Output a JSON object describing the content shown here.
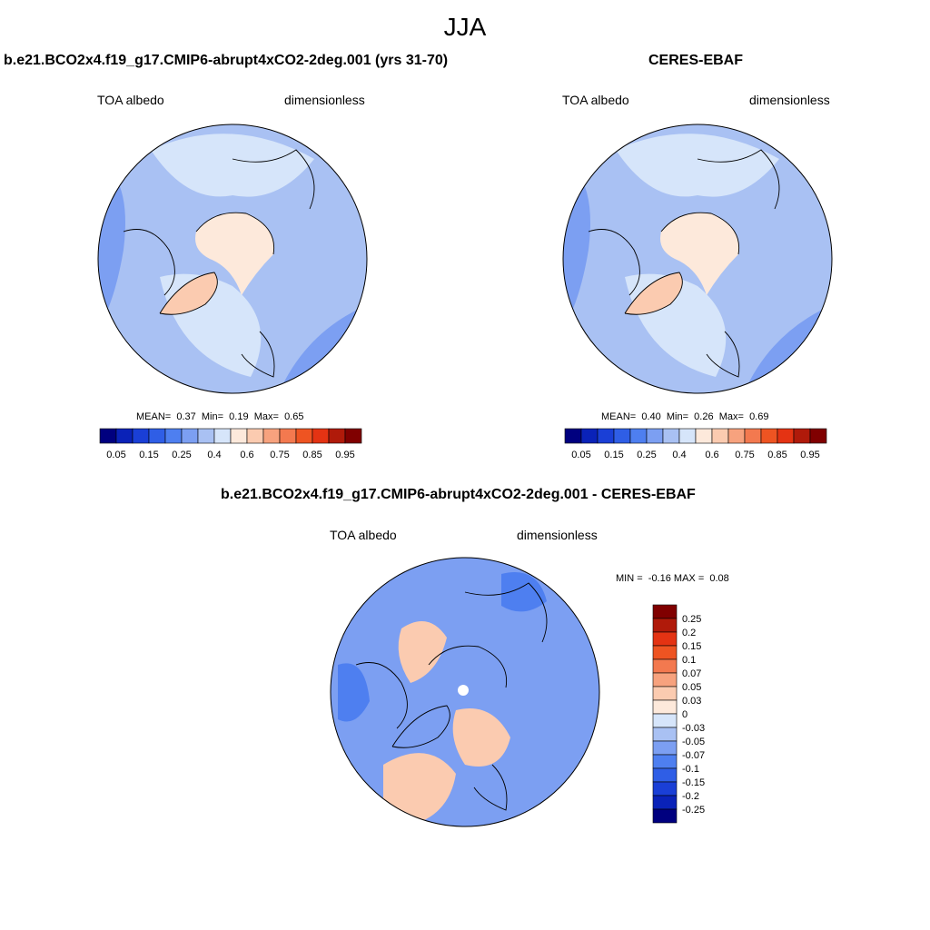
{
  "title": "JJA",
  "panels": [
    {
      "title": "b.e21.BCO2x4.f19_g17.CMIP6-abrupt4xCO2-2deg.001 (yrs 31-70)",
      "left_label": "TOA albedo",
      "right_label": "dimensionless",
      "stats": {
        "mean_label": "MEAN=",
        "mean": "0.37",
        "min_label": "Min=",
        "min": "0.19",
        "max_label": "Max=",
        "max": "0.65"
      }
    },
    {
      "title": "CERES-EBAF",
      "left_label": "TOA albedo",
      "right_label": "dimensionless",
      "stats": {
        "mean_label": "MEAN=",
        "mean": "0.40",
        "min_label": "Min=",
        "min": "0.26",
        "max_label": "Max=",
        "max": "0.69"
      }
    },
    {
      "title": "b.e21.BCO2x4.f19_g17.CMIP6-abrupt4xCO2-2deg.001 - CERES-EBAF",
      "left_label": "TOA albedo",
      "right_label": "dimensionless",
      "stats": {
        "min_label": "MIN =",
        "min": "-0.16",
        "max_label": "MAX =",
        "max": "0.08"
      }
    }
  ],
  "colorbars": {
    "abs_labels": [
      "0.05",
      "0.15",
      "0.25",
      "0.4",
      "0.6",
      "0.75",
      "0.85",
      "0.95"
    ],
    "abs_colors": [
      "#00007f",
      "#0a22b8",
      "#1a3fd6",
      "#2f5ee6",
      "#4e7ff0",
      "#7c9ff2",
      "#a9c1f3",
      "#d6e5fa",
      "#fde9db",
      "#fbcbb0",
      "#f7a27e",
      "#f3794f",
      "#ee5422",
      "#e43313",
      "#b01a0a",
      "#800000"
    ],
    "diff_labels": [
      "0.25",
      "0.2",
      "0.15",
      "0.1",
      "0.07",
      "0.05",
      "0.03",
      "0",
      "-0.03",
      "-0.05",
      "-0.07",
      "-0.1",
      "-0.15",
      "-0.2",
      "-0.25"
    ],
    "diff_colors": [
      "#800000",
      "#b01a0a",
      "#e43313",
      "#ee5422",
      "#f3794f",
      "#f7a27e",
      "#fbcbb0",
      "#fde9db",
      "#d6e5fa",
      "#a9c1f3",
      "#7c9ff2",
      "#4e7ff0",
      "#2f5ee6",
      "#1a3fd6",
      "#0a22b8",
      "#00007f"
    ]
  },
  "map_palette": {
    "ocean_mid": "#a9c1f3",
    "ocean_dark": "#7c9ff2",
    "ocean_light": "#d6e5fa",
    "ice": "#fde9db",
    "ice_strong": "#fbcbb0",
    "diff_pos": "#fbcbb0",
    "diff_neg": "#7c9ff2",
    "diff_neg_strong": "#4e7ff0"
  }
}
